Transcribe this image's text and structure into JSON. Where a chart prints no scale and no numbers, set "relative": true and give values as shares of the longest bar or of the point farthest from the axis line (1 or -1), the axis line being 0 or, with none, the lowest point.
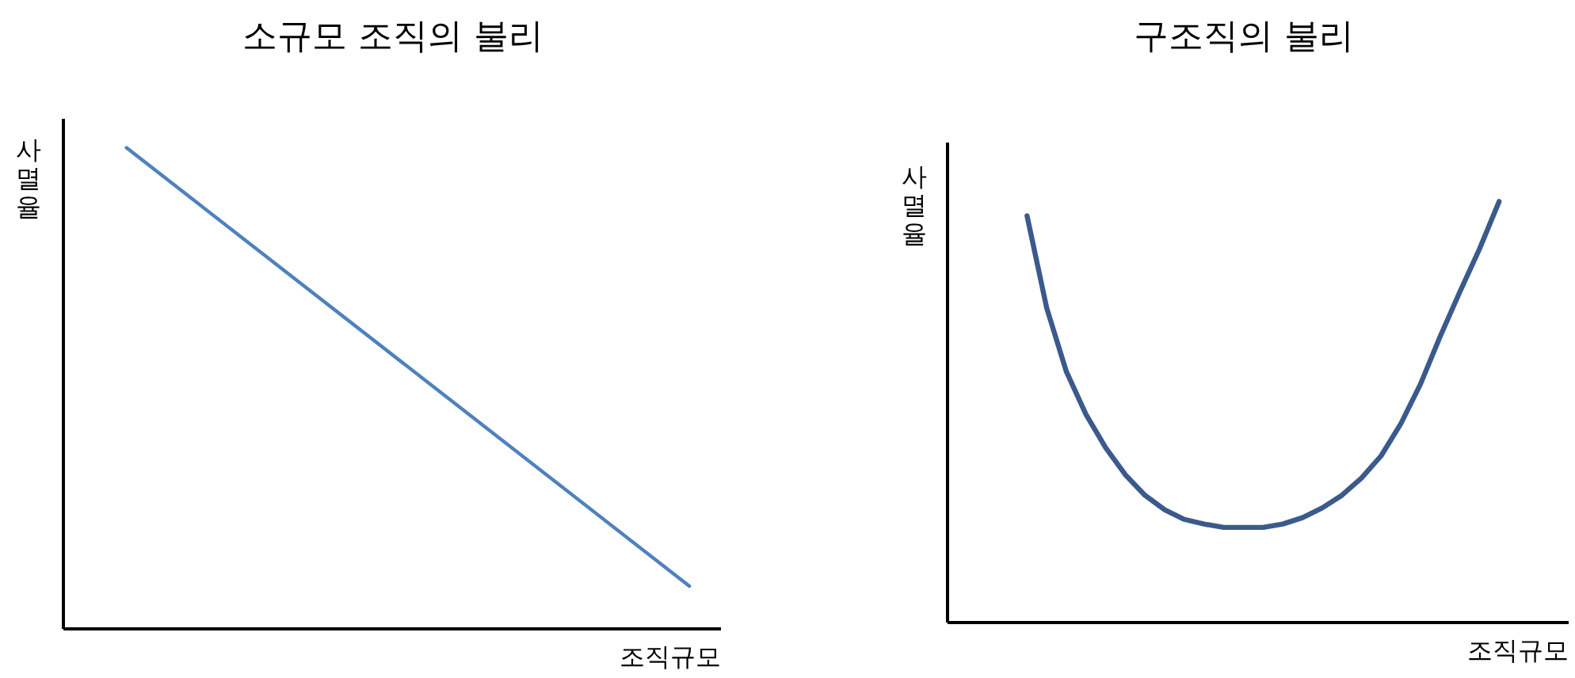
{
  "chart_data": [
    {
      "type": "line",
      "title": "소규모 조직의 불리",
      "xlabel": "조직규모",
      "ylabel": "사멸율",
      "relative": true,
      "categories": [
        null,
        null
      ],
      "series": [
        {
          "color": "#4f81bd",
          "values": [
            1,
            0.089
          ]
        }
      ]
    },
    {
      "type": "line",
      "title": "구조직의 불리",
      "xlabel": "조직규모",
      "ylabel": "사멸율",
      "relative": true,
      "categories": [
        null,
        null,
        null,
        null,
        null,
        null,
        null,
        null,
        null,
        null,
        null,
        null,
        null,
        null,
        null,
        null,
        null,
        null,
        null,
        null,
        null,
        null,
        null,
        null,
        null
      ],
      "series": [
        {
          "color": "#3b5a8c",
          "values": [
            0.966,
            0.747,
            0.596,
            0.494,
            0.415,
            0.351,
            0.302,
            0.268,
            0.245,
            0.234,
            0.226,
            0.226,
            0.226,
            0.234,
            0.249,
            0.272,
            0.302,
            0.343,
            0.396,
            0.472,
            0.566,
            0.679,
            0.785,
            0.887,
            1
          ]
        }
      ]
    }
  ]
}
